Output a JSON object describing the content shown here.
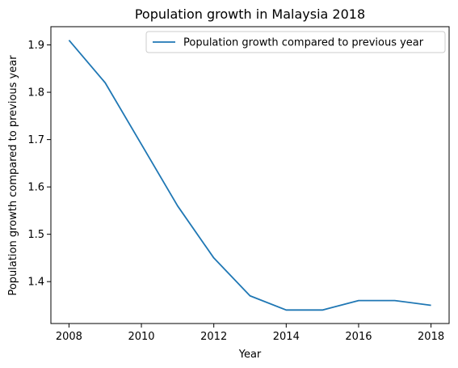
{
  "chart_data": {
    "type": "line",
    "title": "Population growth in Malaysia 2018",
    "xlabel": "Year",
    "ylabel": "Population growth compared to previous year",
    "x": [
      2008,
      2009,
      2010,
      2011,
      2012,
      2013,
      2014,
      2015,
      2016,
      2017,
      2018
    ],
    "series": [
      {
        "name": "Population growth compared to previous year",
        "values": [
          1.91,
          1.82,
          1.69,
          1.56,
          1.45,
          1.37,
          1.34,
          1.34,
          1.36,
          1.36,
          1.35
        ],
        "color": "#1f77b4"
      }
    ],
    "xticks": [
      2008,
      2010,
      2012,
      2014,
      2016,
      2018
    ],
    "yticks": [
      1.4,
      1.5,
      1.6,
      1.7,
      1.8,
      1.9
    ],
    "xlim": [
      2007.5,
      2018.5
    ],
    "ylim": [
      1.3115,
      1.9385
    ],
    "grid": false,
    "legend_position": "upper right"
  }
}
